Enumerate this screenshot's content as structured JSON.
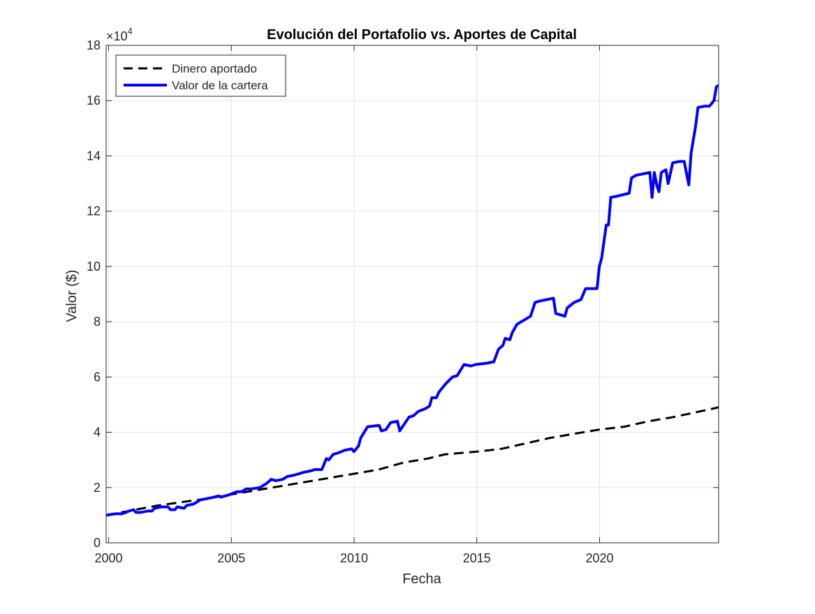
{
  "chart_data": {
    "type": "line",
    "title": "Evolución del Portafolio vs. Aportes de Capital",
    "xlabel": "Fecha",
    "ylabel": "Valor ($)",
    "y_exponent_label": "×10",
    "y_exponent_power": "4",
    "xlim": [
      1999.9,
      2024.85
    ],
    "ylim": [
      0,
      18
    ],
    "x_ticks": [
      2000,
      2005,
      2010,
      2015,
      2020
    ],
    "x_tick_labels": [
      "2000",
      "2005",
      "2010",
      "2015",
      "2020"
    ],
    "y_ticks": [
      0,
      2,
      4,
      6,
      8,
      10,
      12,
      14,
      16,
      18
    ],
    "y_tick_labels": [
      "0",
      "2",
      "4",
      "6",
      "8",
      "10",
      "12",
      "14",
      "16",
      "18"
    ],
    "grid": true,
    "legend_position": "top-left",
    "series": [
      {
        "name": "Dinero aportado",
        "color": "#000000",
        "style": "dashed",
        "points": [
          [
            1999.9,
            1.0
          ],
          [
            2002.0,
            1.35
          ],
          [
            2004.0,
            1.6
          ],
          [
            2006.0,
            1.9
          ],
          [
            2008.0,
            2.2
          ],
          [
            2010.0,
            2.5
          ],
          [
            2011.0,
            2.65
          ],
          [
            2012.0,
            2.9
          ],
          [
            2013.0,
            3.05
          ],
          [
            2013.7,
            3.2
          ],
          [
            2015.0,
            3.3
          ],
          [
            2016.0,
            3.4
          ],
          [
            2017.0,
            3.6
          ],
          [
            2018.0,
            3.8
          ],
          [
            2019.0,
            3.95
          ],
          [
            2020.0,
            4.1
          ],
          [
            2021.0,
            4.2
          ],
          [
            2022.0,
            4.4
          ],
          [
            2023.0,
            4.55
          ],
          [
            2024.85,
            4.9
          ]
        ]
      },
      {
        "name": "Valor de la cartera",
        "color": "#0000ff",
        "style": "solid",
        "points": [
          [
            1999.9,
            1.0
          ],
          [
            2000.3,
            1.05
          ],
          [
            2000.6,
            1.05
          ],
          [
            2000.9,
            1.15
          ],
          [
            2001.1,
            1.2
          ],
          [
            2001.2,
            1.1
          ],
          [
            2001.4,
            1.1
          ],
          [
            2001.7,
            1.15
          ],
          [
            2001.9,
            1.15
          ],
          [
            2002.0,
            1.25
          ],
          [
            2002.3,
            1.3
          ],
          [
            2002.6,
            1.3
          ],
          [
            2002.7,
            1.2
          ],
          [
            2002.9,
            1.2
          ],
          [
            2003.0,
            1.3
          ],
          [
            2003.3,
            1.25
          ],
          [
            2003.4,
            1.35
          ],
          [
            2003.7,
            1.4
          ],
          [
            2004.0,
            1.55
          ],
          [
            2004.3,
            1.6
          ],
          [
            2004.6,
            1.65
          ],
          [
            2004.8,
            1.7
          ],
          [
            2004.9,
            1.65
          ],
          [
            2005.1,
            1.7
          ],
          [
            2005.3,
            1.75
          ],
          [
            2005.6,
            1.85
          ],
          [
            2005.8,
            1.85
          ],
          [
            2006.0,
            1.95
          ],
          [
            2006.2,
            1.95
          ],
          [
            2006.6,
            2.0
          ],
          [
            2006.9,
            2.15
          ],
          [
            2007.1,
            2.3
          ],
          [
            2007.3,
            2.25
          ],
          [
            2007.6,
            2.3
          ],
          [
            2007.8,
            2.4
          ],
          [
            2008.1,
            2.45
          ],
          [
            2008.3,
            2.5
          ],
          [
            2008.5,
            2.55
          ],
          [
            2008.8,
            2.6
          ],
          [
            2009.0,
            2.65
          ],
          [
            2009.3,
            2.65
          ],
          [
            2009.5,
            3.05
          ],
          [
            2009.6,
            3.0
          ],
          [
            2009.8,
            3.2
          ],
          [
            2010.0,
            3.25
          ],
          [
            2010.3,
            3.35
          ],
          [
            2010.6,
            3.4
          ],
          [
            2010.7,
            3.3
          ],
          [
            2010.9,
            3.5
          ],
          [
            2011.0,
            3.8
          ],
          [
            2011.3,
            4.2
          ],
          [
            2011.8,
            4.25
          ],
          [
            2011.9,
            4.05
          ],
          [
            2012.1,
            4.1
          ],
          [
            2012.3,
            4.35
          ],
          [
            2012.6,
            4.4
          ],
          [
            2012.7,
            4.05
          ],
          [
            2012.9,
            4.3
          ],
          [
            2013.1,
            4.55
          ],
          [
            2013.3,
            4.6
          ],
          [
            2013.5,
            4.75
          ],
          [
            2013.8,
            4.85
          ],
          [
            2014.0,
            4.95
          ],
          [
            2014.1,
            5.25
          ],
          [
            2014.3,
            5.25
          ],
          [
            2014.4,
            5.45
          ],
          [
            2014.7,
            5.75
          ],
          [
            2015.0,
            6.0
          ],
          [
            2015.2,
            6.05
          ],
          [
            2015.5,
            6.45
          ],
          [
            2015.8,
            6.4
          ],
          [
            2016.0,
            6.45
          ],
          [
            2016.5,
            6.5
          ],
          [
            2016.8,
            6.55
          ],
          [
            2017.0,
            7.0
          ],
          [
            2017.2,
            7.15
          ],
          [
            2017.3,
            7.4
          ],
          [
            2017.5,
            7.35
          ],
          [
            2017.6,
            7.6
          ],
          [
            2017.8,
            7.9
          ],
          [
            2018.0,
            8.0
          ],
          [
            2018.2,
            8.1
          ],
          [
            2018.4,
            8.2
          ],
          [
            2018.6,
            8.7
          ],
          [
            2018.8,
            8.75
          ],
          [
            2019.1,
            8.8
          ],
          [
            2019.4,
            8.85
          ],
          [
            2019.5,
            8.3
          ],
          [
            2019.9,
            8.2
          ],
          [
            2020.0,
            8.5
          ],
          [
            2020.3,
            8.7
          ],
          [
            2020.6,
            8.8
          ],
          [
            2020.8,
            9.2
          ],
          [
            2021.3,
            9.2
          ],
          [
            2021.4,
            10.0
          ],
          [
            2021.5,
            10.3
          ],
          [
            2021.7,
            11.5
          ],
          [
            2021.8,
            11.5
          ],
          [
            2021.9,
            12.5
          ],
          [
            2022.2,
            12.55
          ],
          [
            2022.7,
            12.65
          ],
          [
            2022.8,
            13.2
          ],
          [
            2023.0,
            13.3
          ],
          [
            2023.6,
            13.4
          ],
          [
            2023.7,
            12.5
          ],
          [
            2023.8,
            13.4
          ],
          [
            2023.9,
            12.95
          ],
          [
            2024.0,
            12.7
          ],
          [
            2024.1,
            13.4
          ],
          [
            2024.3,
            13.5
          ],
          [
            2024.4,
            13.0
          ],
          [
            2024.6,
            13.75
          ],
          [
            2024.9,
            13.8
          ],
          [
            2025.1,
            13.8
          ],
          [
            2025.3,
            12.95
          ],
          [
            2025.4,
            14.1
          ],
          [
            2025.6,
            15.1
          ],
          [
            2025.7,
            15.75
          ],
          [
            2026.0,
            15.8
          ],
          [
            2026.2,
            15.8
          ],
          [
            2026.4,
            16.0
          ],
          [
            2026.5,
            16.5
          ],
          [
            2026.6,
            16.55
          ]
        ]
      }
    ]
  }
}
